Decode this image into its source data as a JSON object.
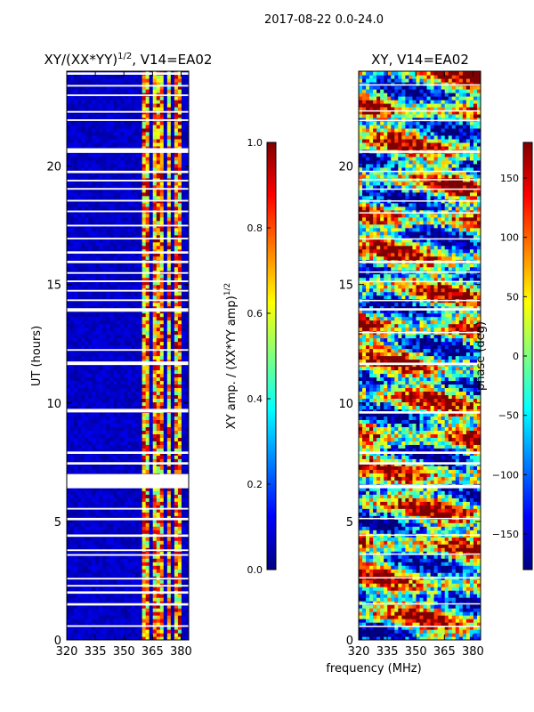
{
  "figure": {
    "suptitle": "2017-08-22 0.0-24.0",
    "xlabel": "frequency (MHz)"
  },
  "colors": {
    "jet": [
      "#00007f",
      "#0000ff",
      "#007fff",
      "#00ffff",
      "#7fff7f",
      "#ffff00",
      "#ff7f00",
      "#ff0000",
      "#7f0000"
    ],
    "gap": "#ffffff",
    "axis": "#000000"
  },
  "chart_data": [
    {
      "type": "heatmap",
      "title_main": "XY/(XX*YY)",
      "title_exp": "1/2",
      "title_tail": ", V14=EA02",
      "xlabel": "",
      "ylabel": "UT (hours)",
      "xlim": [
        320,
        384
      ],
      "ylim": [
        0,
        24
      ],
      "xticks": [
        320,
        335,
        350,
        365,
        380
      ],
      "yticks": [
        0,
        5,
        10,
        15,
        20
      ],
      "colorbar": {
        "label_main": "XY amp. / (XX*YY amp)",
        "label_exp": "1/2",
        "range": [
          0.0,
          1.0
        ],
        "ticks": [
          "0.0",
          "0.2",
          "0.4",
          "0.6",
          "0.8",
          "1.0"
        ],
        "tick_values": [
          0.0,
          0.2,
          0.4,
          0.6,
          0.8,
          1.0
        ]
      },
      "bright_bands_MHz": [
        [
          360,
          364
        ],
        [
          365,
          366.5
        ],
        [
          368,
          371
        ],
        [
          373,
          374
        ],
        [
          376,
          380
        ]
      ],
      "gap_hours": [
        [
          0.55,
          0.62
        ],
        [
          1.45,
          1.55
        ],
        [
          1.95,
          2.05
        ],
        [
          2.25,
          2.32
        ],
        [
          2.55,
          2.62
        ],
        [
          3.55,
          3.62
        ],
        [
          3.75,
          3.82
        ],
        [
          4.35,
          4.45
        ],
        [
          5.05,
          5.15
        ],
        [
          5.5,
          5.57
        ],
        [
          6.4,
          7.0
        ],
        [
          7.4,
          7.5
        ],
        [
          7.85,
          7.95
        ],
        [
          9.6,
          9.75
        ],
        [
          11.6,
          11.75
        ],
        [
          12.2,
          12.27
        ],
        [
          13.85,
          14.0
        ],
        [
          14.3,
          14.37
        ],
        [
          14.7,
          14.77
        ],
        [
          15.1,
          15.17
        ],
        [
          15.45,
          15.52
        ],
        [
          15.9,
          16.0
        ],
        [
          16.3,
          16.4
        ],
        [
          16.9,
          16.97
        ],
        [
          17.45,
          17.52
        ],
        [
          18.05,
          18.12
        ],
        [
          18.5,
          18.57
        ],
        [
          19.0,
          19.07
        ],
        [
          19.35,
          19.42
        ],
        [
          19.7,
          19.8
        ],
        [
          20.55,
          20.75
        ],
        [
          21.9,
          21.97
        ],
        [
          22.25,
          22.32
        ],
        [
          22.95,
          23.02
        ],
        [
          23.35,
          23.42
        ],
        [
          23.85,
          23.95
        ]
      ]
    },
    {
      "type": "heatmap",
      "title": "XY, V14=EA02",
      "xlabel": "",
      "ylabel": "",
      "xlim": [
        320,
        384
      ],
      "ylim": [
        0,
        24
      ],
      "xticks": [
        320,
        335,
        350,
        365,
        380
      ],
      "yticks": [
        0,
        5,
        10,
        15,
        20
      ],
      "colorbar": {
        "label": "phase (deg)",
        "range": [
          -180,
          180
        ],
        "ticks": [
          "−150",
          "−100",
          "−50",
          "0",
          "50",
          "100",
          "150"
        ],
        "tick_values": [
          -150,
          -100,
          -50,
          0,
          50,
          100,
          150
        ]
      },
      "gap_hours": [
        [
          0.55,
          0.6
        ],
        [
          1.5,
          1.55
        ],
        [
          2.6,
          2.65
        ],
        [
          3.6,
          3.65
        ],
        [
          4.4,
          4.45
        ],
        [
          5.1,
          5.15
        ],
        [
          6.4,
          6.55
        ],
        [
          7.4,
          7.5
        ],
        [
          7.85,
          7.95
        ],
        [
          9.55,
          9.65
        ],
        [
          11.6,
          11.7
        ],
        [
          12.95,
          13.0
        ],
        [
          13.9,
          14.0
        ],
        [
          14.3,
          14.35
        ],
        [
          15.1,
          15.15
        ],
        [
          15.5,
          15.55
        ],
        [
          15.9,
          16.0
        ],
        [
          16.9,
          16.95
        ],
        [
          18.0,
          18.05
        ],
        [
          18.5,
          18.55
        ],
        [
          19.0,
          19.05
        ],
        [
          19.4,
          19.45
        ],
        [
          19.75,
          19.8
        ],
        [
          20.55,
          20.65
        ],
        [
          21.9,
          21.95
        ],
        [
          22.3,
          22.35
        ],
        [
          23.4,
          23.45
        ]
      ]
    }
  ]
}
